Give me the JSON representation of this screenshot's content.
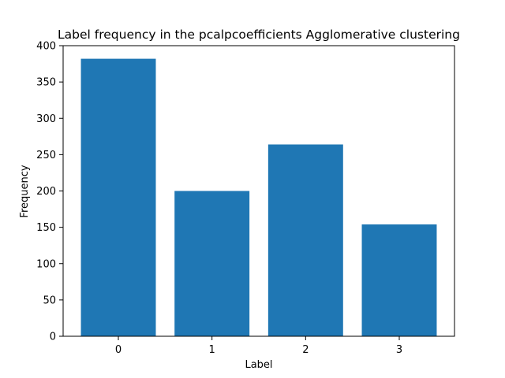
{
  "chart_data": {
    "type": "bar",
    "title": "Label frequency in the pcalpcoefficients Agglomerative clustering",
    "xlabel": "Label",
    "ylabel": "Frequency",
    "categories": [
      "0",
      "1",
      "2",
      "3"
    ],
    "values": [
      382,
      200,
      264,
      154
    ],
    "ylim": [
      0,
      400
    ],
    "yticks": [
      0,
      50,
      100,
      150,
      200,
      250,
      300,
      350,
      400
    ],
    "bar_color": "#1f77b4",
    "grid": false,
    "legend": "none"
  }
}
